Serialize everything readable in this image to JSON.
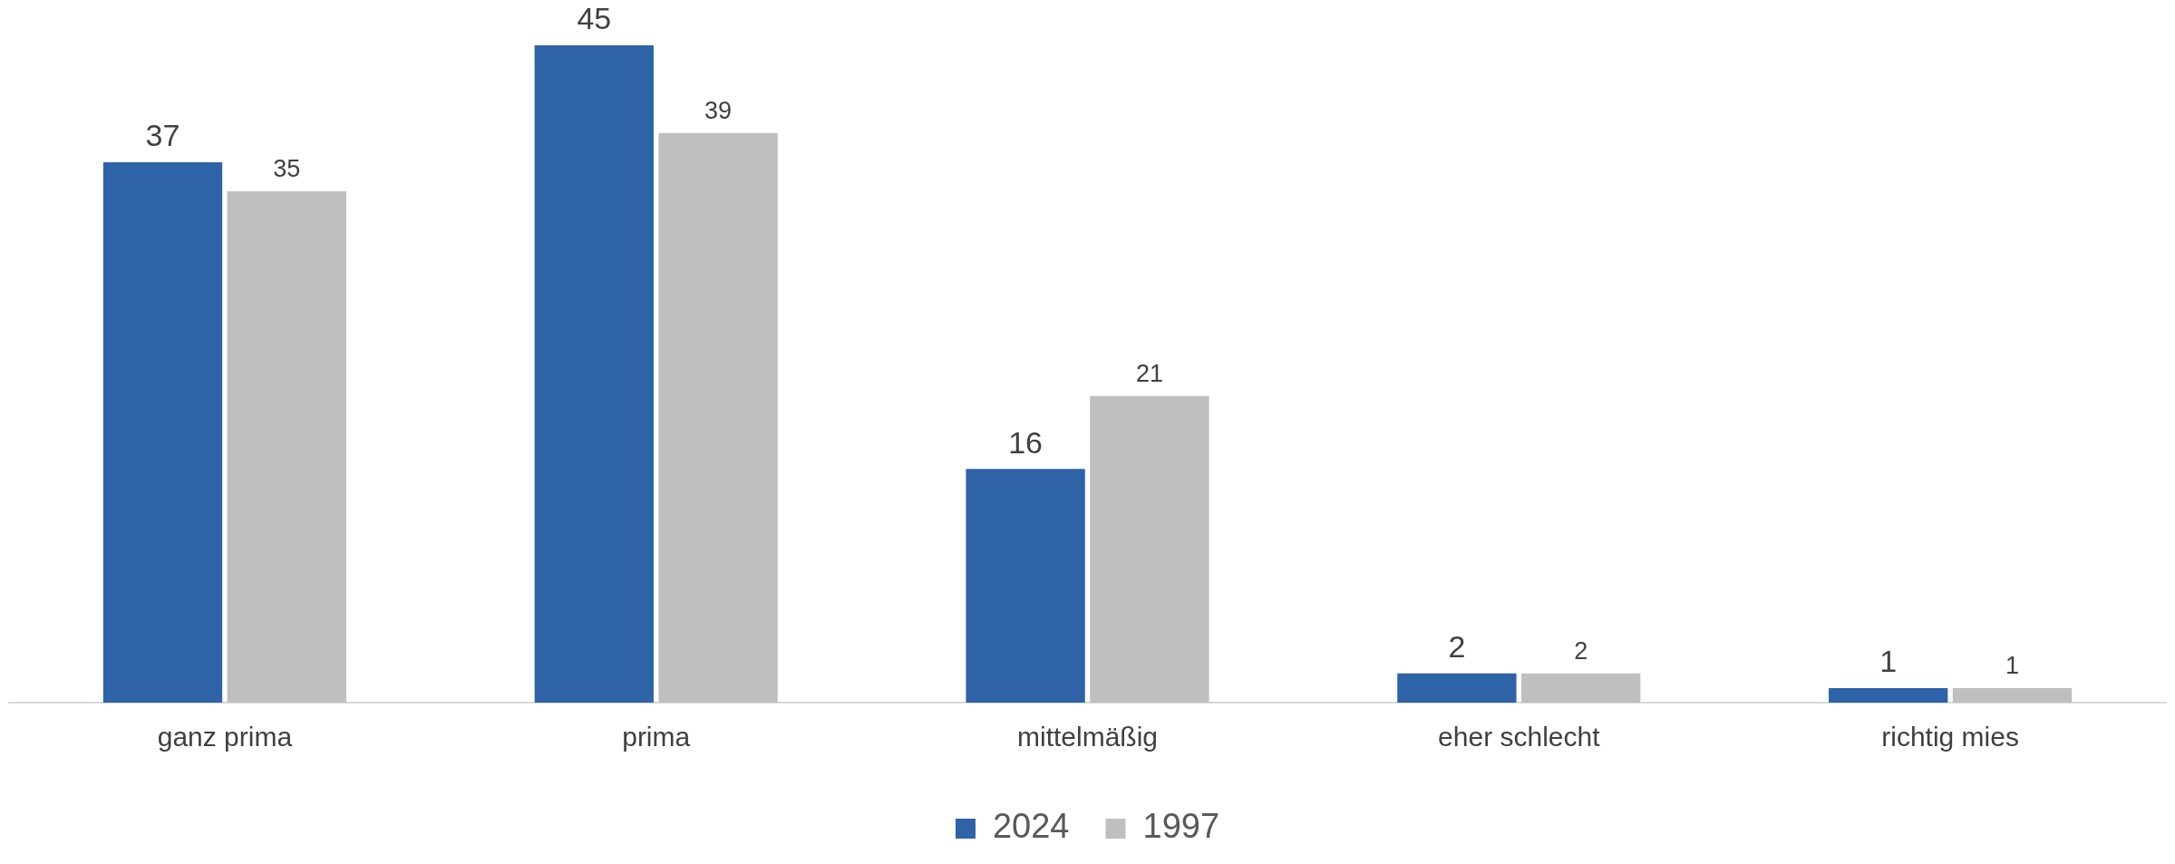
{
  "chart_data": {
    "type": "bar",
    "categories": [
      "ganz prima",
      "prima",
      "mittelmäßig",
      "eher schlecht",
      "richtig mies"
    ],
    "series": [
      {
        "name": "2024",
        "color": "#2e63a8",
        "values": [
          37,
          45,
          16,
          2,
          1
        ]
      },
      {
        "name": "1997",
        "color": "#bfbfbf",
        "values": [
          35,
          39,
          21,
          2,
          1
        ]
      }
    ],
    "data_labels": true,
    "legend": "bottom",
    "grid": false
  }
}
